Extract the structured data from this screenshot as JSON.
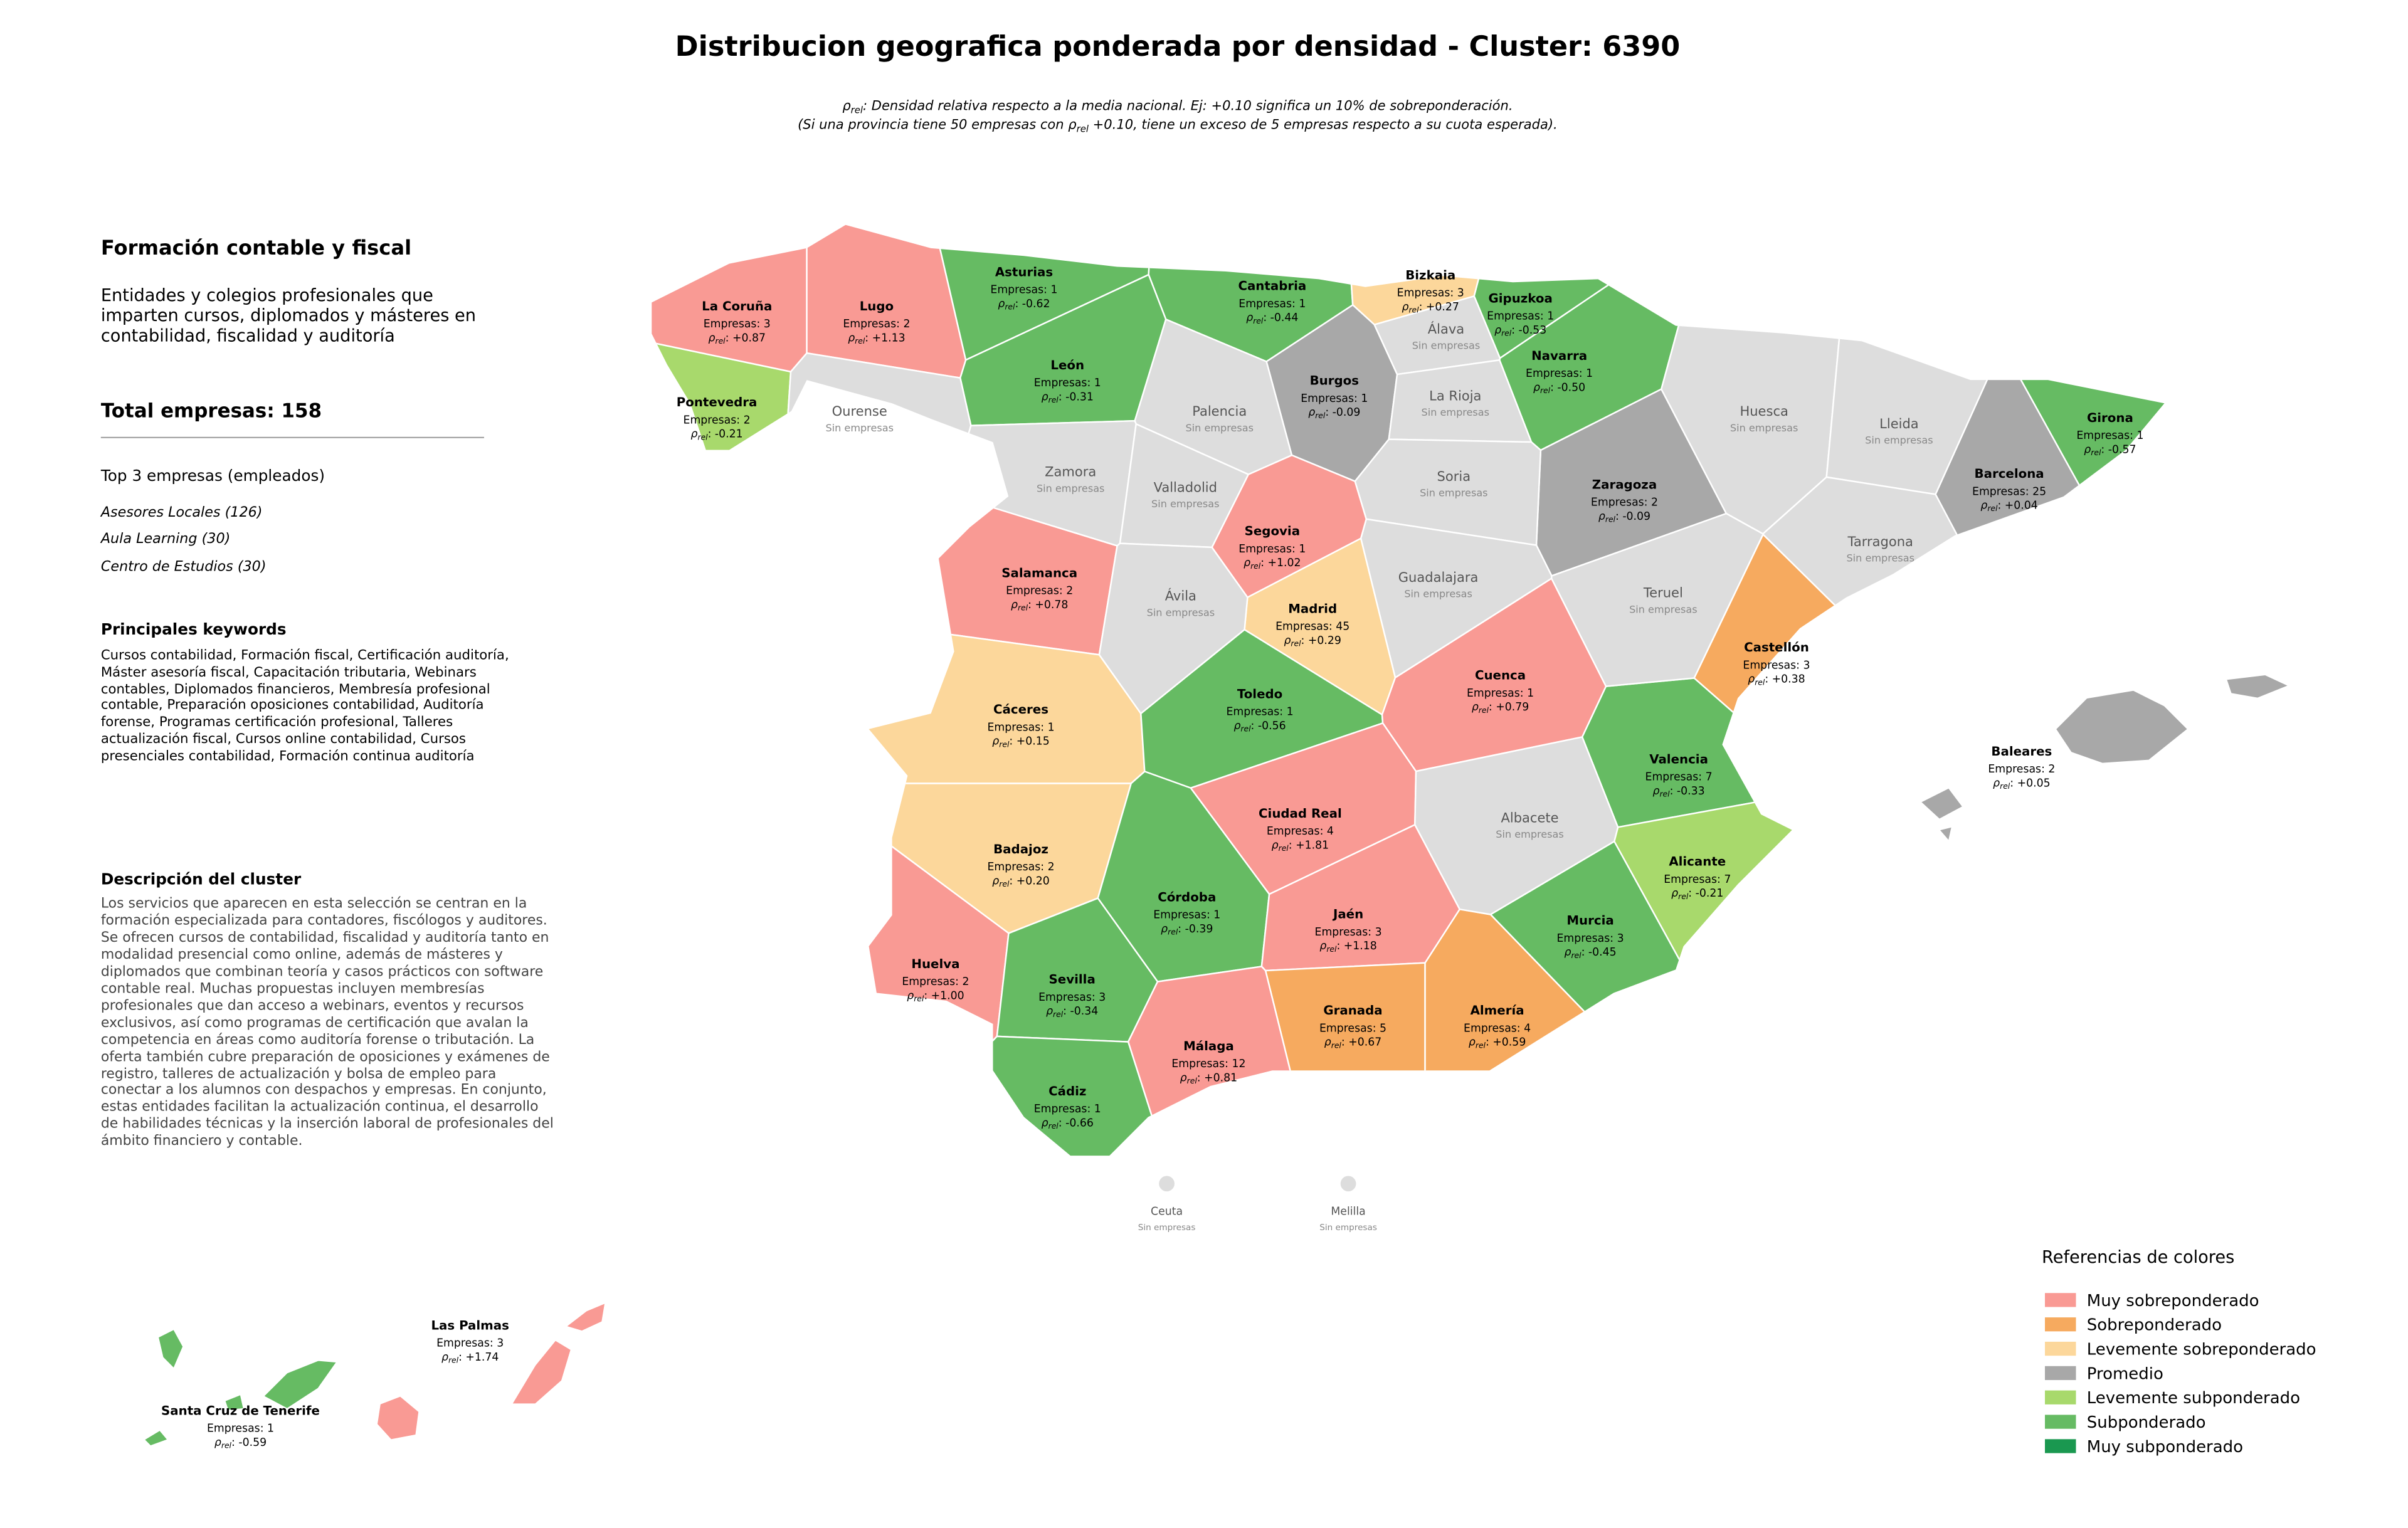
{
  "title": "Distribucion geografica ponderada por densidad - Cluster: 6390",
  "rho_symbol": "ρ",
  "rho_subscript": "rel",
  "rho_separator": ":",
  "subtitle_line1_after": ": Densidad relativa respecto a la media nacional. Ej: +0.10 significa un 10% de sobreponderación.",
  "subtitle_line2_before": "(Si una provincia tiene 50 empresas con ",
  "subtitle_line2_after": " +0.10, tiene un exceso de 5 empresas respecto a su cuota esperada).",
  "panel": {
    "heading": "Formación contable y fiscal",
    "description": "Entidades y colegios profesionales que imparten cursos, diplomados y másteres en contabilidad, fiscalidad y auditoría",
    "total_label": "Total empresas:",
    "total": 158,
    "top_heading": "Top 3 empresas (empleados)",
    "top": [
      "Asesores Locales (126)",
      "Aula Learning (30)",
      "Centro de Estudios (30)"
    ],
    "keywords_heading": "Principales keywords",
    "keywords": "Cursos contabilidad, Formación fiscal, Certificación auditoría, Máster asesoría fiscal, Capacitación tributaria, Webinars contables, Diplomados financieros, Membresía profesional contable, Preparación oposiciones contabilidad, Auditoría forense, Programas certificación profesional, Talleres actualización fiscal, Cursos online contabilidad, Cursos presenciales contabilidad, Formación continua auditoría",
    "cluster_heading": "Descripción del cluster",
    "cluster_text": "Los servicios que aparecen en esta selección se centran en la formación especializada para contadores, fiscólogos y auditores. Se ofrecen cursos de contabilidad, fiscalidad y auditoría tanto en modalidad presencial como online, además de másteres y diplomados que combinan teoría y casos prácticos con software contable real. Muchas propuestas incluyen membresías profesionales que dan acceso a webinars, eventos y recursos exclusivos, así como programas de certificación que avalan la competencia en áreas como auditoría forense o tributación. La oferta también cubre preparación de oposiciones y exámenes de registro, talleres de actualización y bolsa de empleo para conectar a los alumnos con despachos y empresas. En conjunto, estas entidades facilitan la actualización continua, el desarrollo de habilidades técnicas y la inserción laboral de profesionales del ámbito financiero y contable."
  },
  "legend": {
    "title": "Referencias de colores",
    "categories": [
      {
        "name": "Muy sobreponderado",
        "color": "#f99a94"
      },
      {
        "name": "Sobreponderado",
        "color": "#f6aa5f"
      },
      {
        "name": "Levemente sobreponderado",
        "color": "#fcd79b"
      },
      {
        "name": "Promedio",
        "color": "#a8a8a8"
      },
      {
        "name": "Levemente subponderado",
        "color": "#a8d96c"
      },
      {
        "name": "Subponderado",
        "color": "#66bb63"
      },
      {
        "name": "Muy subponderado",
        "color": "#1a9850"
      }
    ]
  },
  "empresas_prefix": "Empresas:",
  "no_data_label": "Sin empresas",
  "no_data_color": "#dddddd",
  "provinces": [
    {
      "name": "La Coruña",
      "empresas": 3,
      "rho": "+0.87",
      "category": 0
    },
    {
      "name": "Lugo",
      "empresas": 2,
      "rho": "+1.13",
      "category": 0
    },
    {
      "name": "Asturias",
      "empresas": 1,
      "rho": "-0.62",
      "category": 5
    },
    {
      "name": "Cantabria",
      "empresas": 1,
      "rho": "-0.44",
      "category": 5
    },
    {
      "name": "Bizkaia",
      "empresas": 3,
      "rho": "+0.27",
      "category": 2
    },
    {
      "name": "Gipuzkoa",
      "empresas": 1,
      "rho": "-0.53",
      "category": 5
    },
    {
      "name": "Navarra",
      "empresas": 1,
      "rho": "-0.50",
      "category": 5
    },
    {
      "name": "Pontevedra",
      "empresas": 2,
      "rho": "-0.21",
      "category": 4
    },
    {
      "name": "León",
      "empresas": 1,
      "rho": "-0.31",
      "category": 5
    },
    {
      "name": "Burgos",
      "empresas": 1,
      "rho": "-0.09",
      "category": 3
    },
    {
      "name": "Zaragoza",
      "empresas": 2,
      "rho": "-0.09",
      "category": 3
    },
    {
      "name": "Girona",
      "empresas": 1,
      "rho": "-0.57",
      "category": 5
    },
    {
      "name": "Barcelona",
      "empresas": 25,
      "rho": "+0.04",
      "category": 3
    },
    {
      "name": "Segovia",
      "empresas": 1,
      "rho": "+1.02",
      "category": 0
    },
    {
      "name": "Salamanca",
      "empresas": 2,
      "rho": "+0.78",
      "category": 0
    },
    {
      "name": "Madrid",
      "empresas": 45,
      "rho": "+0.29",
      "category": 2
    },
    {
      "name": "Cáceres",
      "empresas": 1,
      "rho": "+0.15",
      "category": 2
    },
    {
      "name": "Toledo",
      "empresas": 1,
      "rho": "-0.56",
      "category": 5
    },
    {
      "name": "Cuenca",
      "empresas": 1,
      "rho": "+0.79",
      "category": 0
    },
    {
      "name": "Castellón",
      "empresas": 3,
      "rho": "+0.38",
      "category": 1
    },
    {
      "name": "Valencia",
      "empresas": 7,
      "rho": "-0.33",
      "category": 5
    },
    {
      "name": "Baleares",
      "empresas": 2,
      "rho": "+0.05",
      "category": 3
    },
    {
      "name": "Badajoz",
      "empresas": 2,
      "rho": "+0.20",
      "category": 2
    },
    {
      "name": "Ciudad Real",
      "empresas": 4,
      "rho": "+1.81",
      "category": 0
    },
    {
      "name": "Alicante",
      "empresas": 7,
      "rho": "-0.21",
      "category": 4
    },
    {
      "name": "Córdoba",
      "empresas": 1,
      "rho": "-0.39",
      "category": 5
    },
    {
      "name": "Jaén",
      "empresas": 3,
      "rho": "+1.18",
      "category": 0
    },
    {
      "name": "Murcia",
      "empresas": 3,
      "rho": "-0.45",
      "category": 5
    },
    {
      "name": "Huelva",
      "empresas": 2,
      "rho": "+1.00",
      "category": 0
    },
    {
      "name": "Sevilla",
      "empresas": 3,
      "rho": "-0.34",
      "category": 5
    },
    {
      "name": "Granada",
      "empresas": 5,
      "rho": "+0.67",
      "category": 1
    },
    {
      "name": "Almería",
      "empresas": 4,
      "rho": "+0.59",
      "category": 1
    },
    {
      "name": "Málaga",
      "empresas": 12,
      "rho": "+0.81",
      "category": 0
    },
    {
      "name": "Cádiz",
      "empresas": 1,
      "rho": "-0.66",
      "category": 5
    },
    {
      "name": "Las Palmas",
      "empresas": 3,
      "rho": "+1.74",
      "category": 0
    },
    {
      "name": "Santa Cruz de Tenerife",
      "empresas": 1,
      "rho": "-0.59",
      "category": 5
    }
  ],
  "no_data_provinces": [
    "Ourense",
    "Palencia",
    "Álava",
    "La Rioja",
    "Huesca",
    "Lleida",
    "Zamora",
    "Valladolid",
    "Soria",
    "Guadalajara",
    "Tarragona",
    "Ávila",
    "Teruel",
    "Albacete",
    "Ceuta",
    "Melilla"
  ]
}
